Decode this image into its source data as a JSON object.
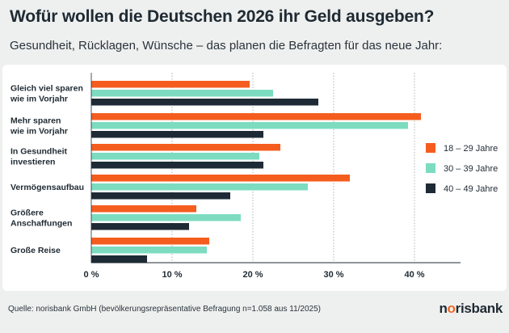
{
  "header": {
    "title": "Wofür wollen die Deutschen 2026 ihr Geld ausgeben?",
    "subtitle": "Gesundheit, Rücklagen, Wünsche – das planen die Befragten für das neue Jahr:"
  },
  "footer": {
    "source": "Quelle: norisbank GmbH (bevölkerungsrepräsentative Befragung n=1.058 aus 11/2025)",
    "logo_text": "norisbank"
  },
  "chart_data": {
    "type": "bar",
    "orientation": "horizontal",
    "categories": [
      [
        "Gleich viel sparen",
        "wie im Vorjahr"
      ],
      [
        "Mehr sparen",
        "wie im Vorjahr"
      ],
      [
        "In Gesundheit",
        "investieren"
      ],
      [
        "Vermögensaufbau"
      ],
      [
        "Größere",
        "Anschaffungen"
      ],
      [
        "Große Reise"
      ]
    ],
    "series": [
      {
        "name": "18 – 29 Jahre",
        "color": "#f55d1f",
        "values": [
          19.6,
          40.8,
          23.4,
          32.0,
          13.0,
          14.6
        ]
      },
      {
        "name": "30 – 39 Jahre",
        "color": "#7ddcc0",
        "values": [
          22.5,
          39.2,
          20.8,
          26.8,
          18.5,
          14.3
        ]
      },
      {
        "name": "40 – 49 Jahre",
        "color": "#1e2b36",
        "values": [
          28.1,
          21.3,
          21.3,
          17.2,
          12.1,
          6.9
        ]
      }
    ],
    "xlim": [
      0,
      45
    ],
    "xticks": [
      0,
      10,
      20,
      30,
      40
    ],
    "xtick_labels": [
      "0 %",
      "10 %",
      "20 %",
      "30 %",
      "40 %"
    ],
    "grid": true,
    "legend_position": "right"
  }
}
